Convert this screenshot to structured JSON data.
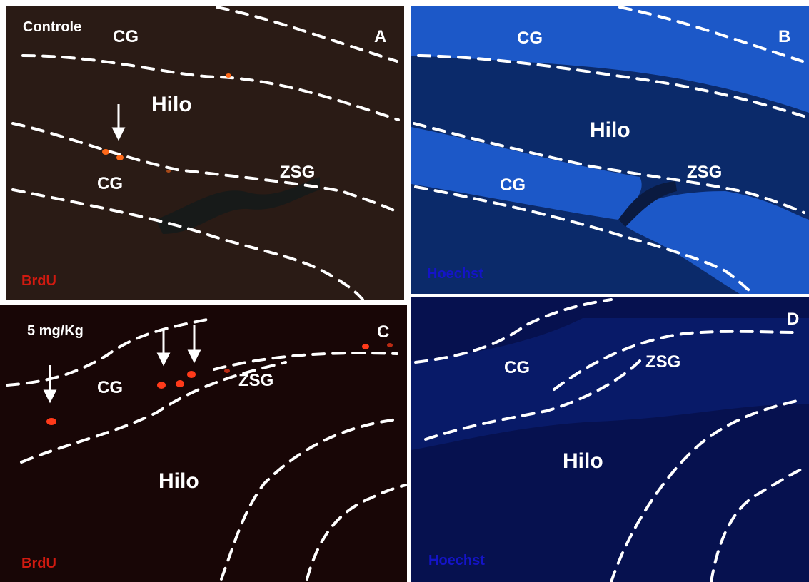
{
  "colors": {
    "brdu_bg": "#2a1b15",
    "brdu_bg_c": "#180606",
    "hoechst_bg": "#0b2a6a",
    "hoechst_bg_d": "#06114f",
    "hoechst_layer": "#2060d8",
    "brdu_text": "#d11a10",
    "hoechst_text": "#1414c8",
    "cell": "#ff6a1a"
  },
  "panels": {
    "A": {
      "letter": "A",
      "condition": "Controle",
      "stain": "BrdU",
      "regions": {
        "cg_top": "CG",
        "hilo": "Hilo",
        "cg_bottom": "CG",
        "zsg": "ZSG"
      }
    },
    "B": {
      "letter": "B",
      "stain": "Hoechst",
      "regions": {
        "cg_top": "CG",
        "hilo": "Hilo",
        "cg_bottom": "CG",
        "zsg": "ZSG"
      }
    },
    "C": {
      "letter": "C",
      "condition": "5 mg/Kg",
      "stain": "BrdU",
      "regions": {
        "cg": "CG",
        "zsg": "ZSG",
        "hilo": "Hilo"
      }
    },
    "D": {
      "letter": "D",
      "stain": "Hoechst",
      "regions": {
        "cg": "CG",
        "zsg": "ZSG",
        "hilo": "Hilo"
      }
    }
  }
}
